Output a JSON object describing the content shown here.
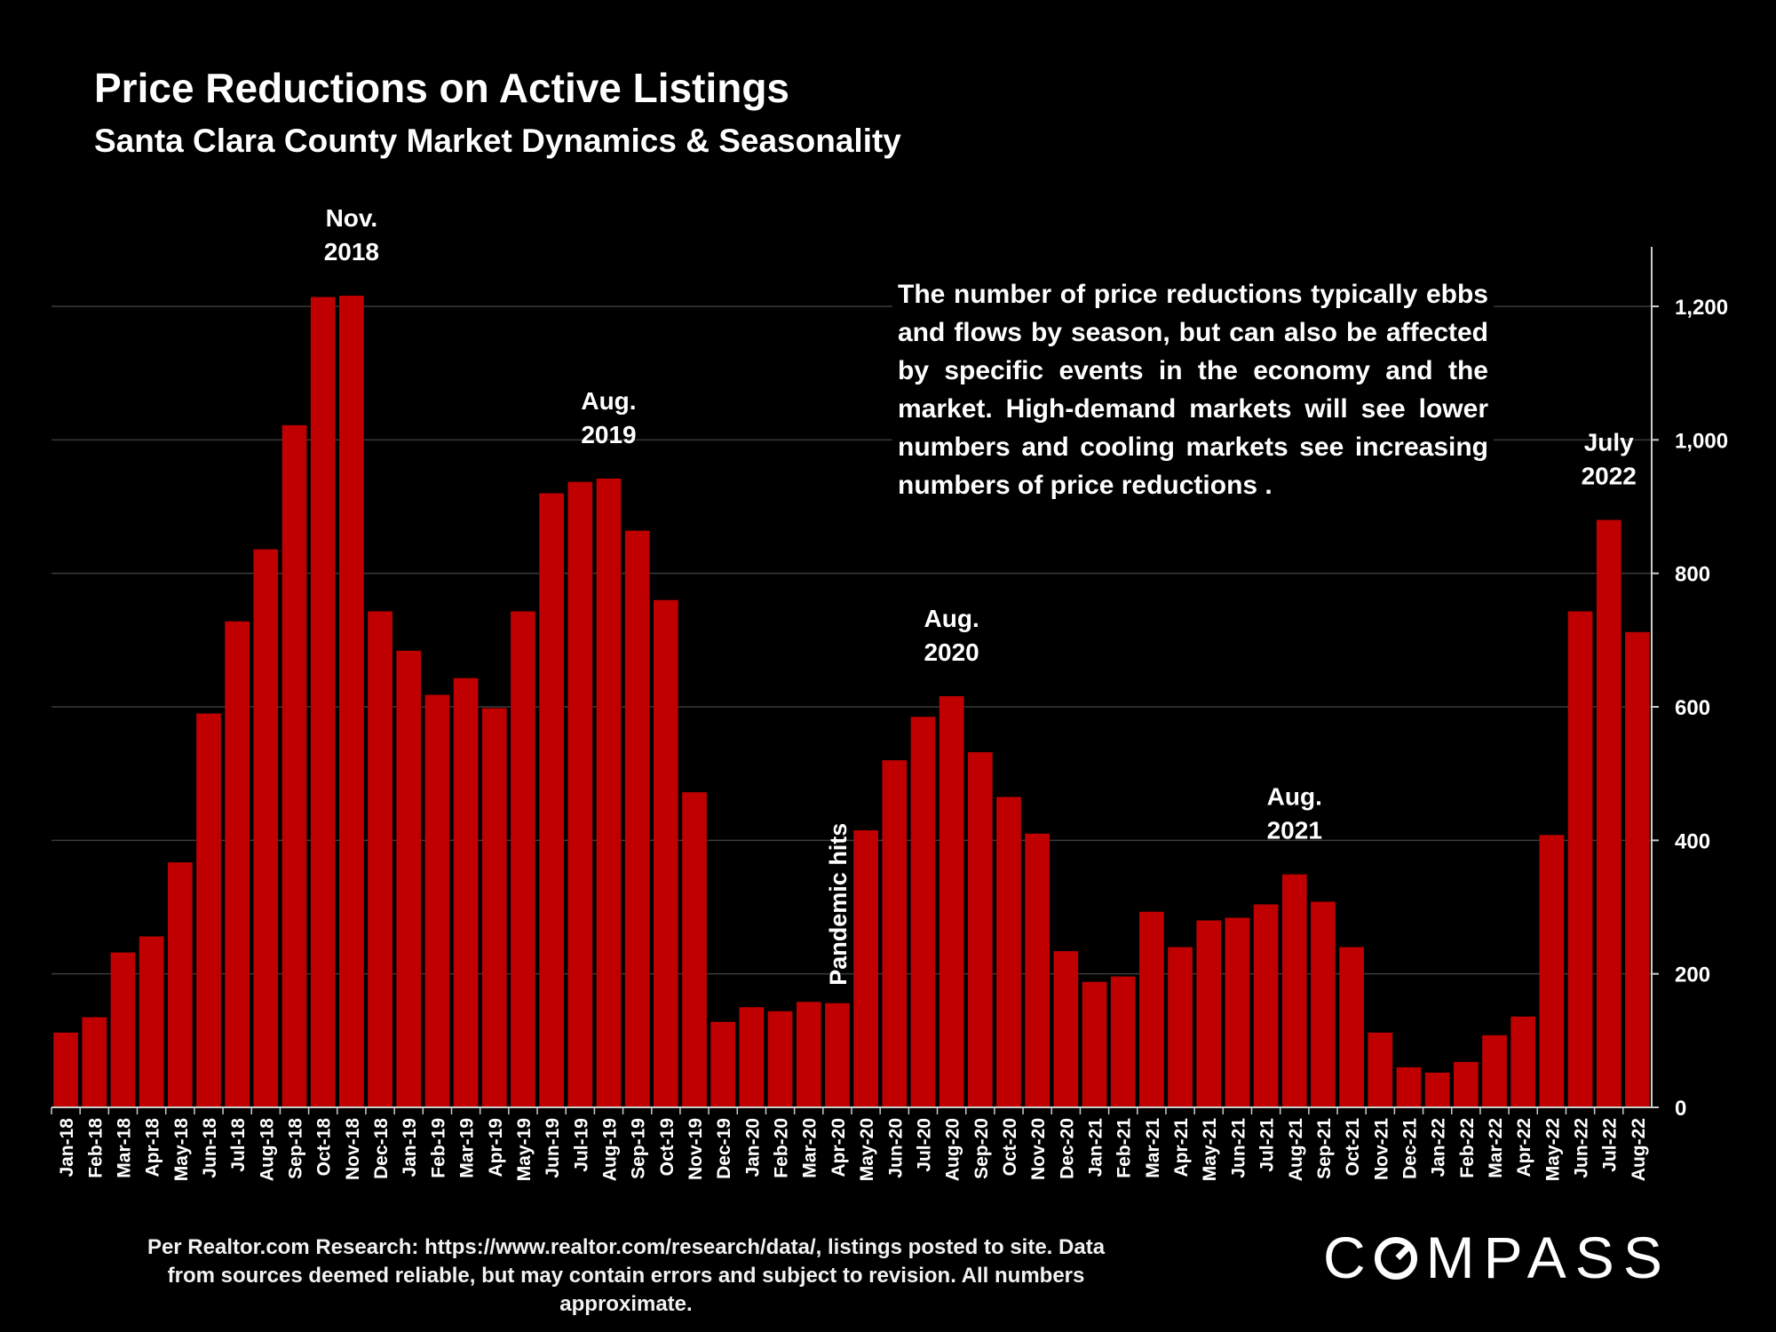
{
  "title": "Price Reductions on Active Listings",
  "subtitle": "Santa Clara County Market Dynamics & Seasonality",
  "note": "The number of price reductions typically ebbs and flows by season, but can also be affected by specific events in the economy and the market. High-demand markets will see lower numbers and cooling markets see increasing numbers of price reductions .",
  "source": "Per Realtor.com Research:  https://www.realtor.com/research/data/, listings posted to site. Data from sources deemed reliable, but may contain errors and subject to revision. All numbers approximate.",
  "logo": {
    "before": "C",
    "after": "MPASS",
    "icon": "compass-o-icon"
  },
  "colors": {
    "bar": "#c00000",
    "background": "#000000",
    "text": "#ffffff",
    "grid": "#3a3a3a"
  },
  "chart_data": {
    "type": "bar",
    "categories": [
      "Jan-18",
      "Feb-18",
      "Mar-18",
      "Apr-18",
      "May-18",
      "Jun-18",
      "Jul-18",
      "Aug-18",
      "Sep-18",
      "Oct-18",
      "Nov-18",
      "Dec-18",
      "Jan-19",
      "Feb-19",
      "Mar-19",
      "Apr-19",
      "May-19",
      "Jun-19",
      "Jul-19",
      "Aug-19",
      "Sep-19",
      "Oct-19",
      "Nov-19",
      "Dec-19",
      "Jan-20",
      "Feb-20",
      "Mar-20",
      "Apr-20",
      "May-20",
      "Jun-20",
      "Jul-20",
      "Aug-20",
      "Sep-20",
      "Oct-20",
      "Nov-20",
      "Dec-20",
      "Jan-21",
      "Feb-21",
      "Mar-21",
      "Apr-21",
      "May-21",
      "Jun-21",
      "Jul-21",
      "Aug-21",
      "Sep-21",
      "Oct-21",
      "Nov-21",
      "Dec-21",
      "Jan-22",
      "Feb-22",
      "Mar-22",
      "Apr-22",
      "May-22",
      "Jun-22",
      "Jul-22",
      "Aug-22"
    ],
    "values": [
      112,
      135,
      232,
      256,
      367,
      590,
      728,
      836,
      1022,
      1214,
      1216,
      743,
      684,
      618,
      643,
      598,
      743,
      920,
      937,
      942,
      864,
      760,
      472,
      128,
      150,
      144,
      158,
      156,
      415,
      520,
      585,
      616,
      532,
      465,
      410,
      234,
      188,
      196,
      293,
      240,
      280,
      284,
      304,
      349,
      308,
      240,
      112,
      60,
      52,
      68,
      108,
      136,
      408,
      743,
      880,
      712
    ],
    "ylim": [
      0,
      1300
    ],
    "yticks": [
      0,
      200,
      400,
      600,
      800,
      1000,
      1200
    ],
    "ytick_labels": [
      "0",
      "200",
      "400",
      "600",
      "800",
      "1,000",
      "1,200"
    ],
    "yaxis_position": "right",
    "grid": true,
    "annotations": [
      {
        "index": 10,
        "lines": [
          "Nov.",
          "2018"
        ]
      },
      {
        "index": 19,
        "lines": [
          "Aug.",
          "2019"
        ]
      },
      {
        "index": 31,
        "lines": [
          "Aug.",
          "2020"
        ]
      },
      {
        "index": 43,
        "lines": [
          "Aug.",
          "2021"
        ]
      },
      {
        "index": 54,
        "lines": [
          "July",
          "2022"
        ]
      }
    ],
    "event_label": {
      "index": 27,
      "text": "Pandemic hits"
    }
  }
}
